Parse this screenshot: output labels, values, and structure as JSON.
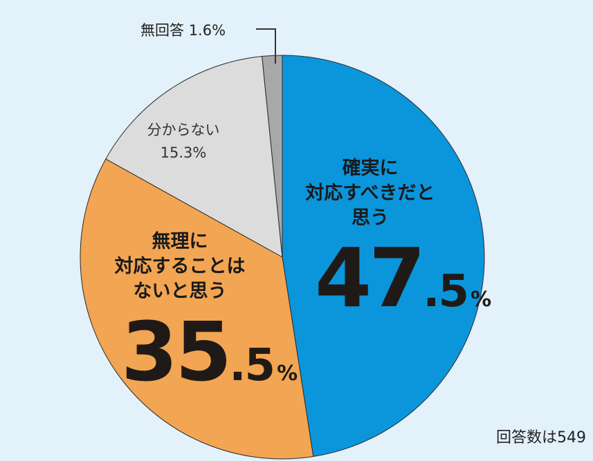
{
  "chart_data": {
    "type": "pie",
    "slices": [
      {
        "label": "確実に対応すべきだと思う",
        "label_lines": [
          "確実に",
          "対応すべきだと",
          "思う"
        ],
        "value": 47.5,
        "value_int": "47",
        "value_dec": ".5",
        "color": "#0b96dc"
      },
      {
        "label": "無理に対応することはないと思う",
        "label_lines": [
          "無理に",
          "対応することは",
          "ないと思う"
        ],
        "value": 35.5,
        "value_int": "35",
        "value_dec": ".5",
        "color": "#f2a552"
      },
      {
        "label": "分からない",
        "label_lines": [
          "分からない"
        ],
        "value": 15.3,
        "value_text": "15.3%",
        "color": "#dcdcdc"
      },
      {
        "label": "無回答",
        "value": 1.6,
        "value_text": "1.6%",
        "color": "#a8a8a8"
      }
    ],
    "unit": "%",
    "legend": "none"
  },
  "note": {
    "total": "回答数は549"
  }
}
